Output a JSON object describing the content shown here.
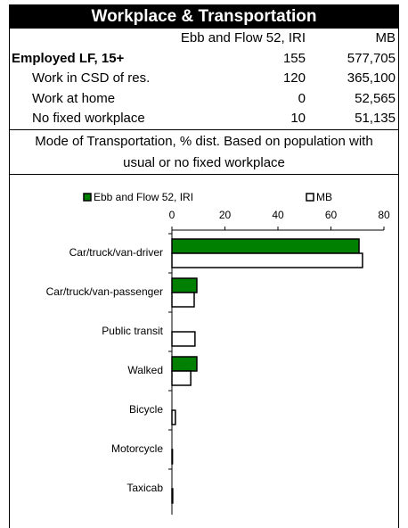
{
  "header": {
    "title": "Workplace & Transportation"
  },
  "table": {
    "header": [
      "Ebb and Flow 52, IRI",
      "MB"
    ],
    "rows": [
      [
        "Employed LF, 15+",
        "155",
        "577,705"
      ],
      [
        "Work in CSD of res.",
        "120",
        "365,100"
      ],
      [
        "Work at home",
        "0",
        "52,565"
      ],
      [
        "No fixed workplace",
        "10",
        "51,135"
      ]
    ]
  },
  "caption": "Mode of Transportation, % dist. Based on population with usual or no fixed workplace",
  "chart_data": {
    "type": "bar",
    "orientation": "horizontal",
    "categories": [
      "Car/truck/van-driver",
      "Car/truck/van-passenger",
      "Public transit",
      "Walked",
      "Bicycle",
      "Motorcycle",
      "Taxicab"
    ],
    "series": [
      {
        "name": "Ebb and Flow 52, IRI",
        "color": "#008000",
        "values": [
          70.6,
          9.4,
          0,
          9.4,
          0,
          0,
          0
        ]
      },
      {
        "name": "MB",
        "color": "#ffffff",
        "values": [
          71.9,
          8.4,
          8.7,
          7.1,
          1.3,
          0.2,
          0.3
        ]
      }
    ],
    "xlim": [
      0,
      80
    ],
    "xticks": [
      0,
      20,
      40,
      60,
      80
    ],
    "legend": "top",
    "grid": false
  }
}
